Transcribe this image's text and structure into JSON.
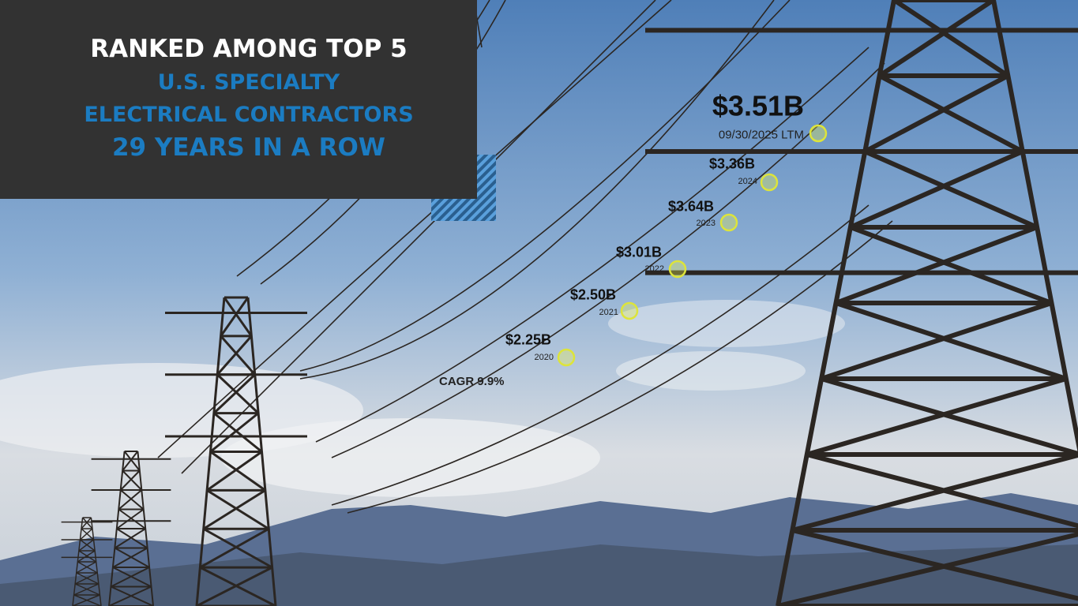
{
  "header": {
    "lines": [
      "RANKED AMONG TOP 5",
      "U.S. SPECIALTY",
      "ELECTRICAL CONTRACTORS",
      "29 YEARS IN A ROW"
    ]
  },
  "milestones": [
    {
      "value": "$2.25B",
      "period": "2020"
    },
    {
      "value": "$2.50B",
      "period": "2021"
    },
    {
      "value": "$3.01B",
      "period": "2022"
    },
    {
      "value": "$3.64B",
      "period": "2023"
    },
    {
      "value": "$3.36B",
      "period": "2024"
    },
    {
      "value": "$3.51B",
      "period": "09/30/2025 LTM"
    }
  ],
  "cagr": "CAGR 9.9%"
}
